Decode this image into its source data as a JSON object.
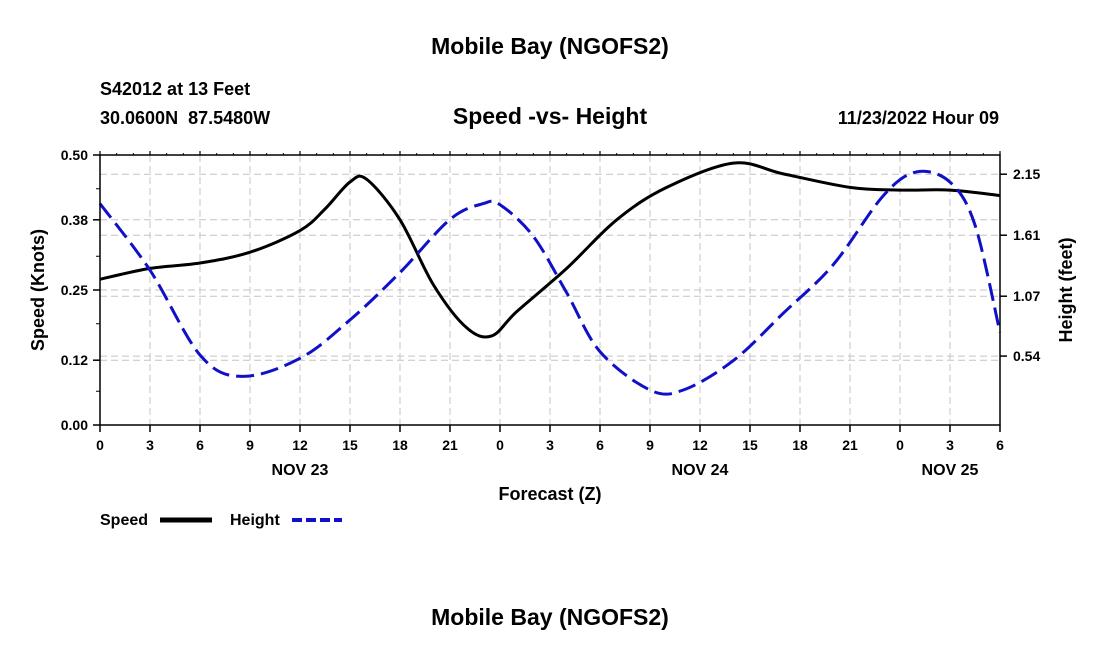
{
  "header": {
    "title": "Mobile Bay (NGOFS2)",
    "station": "S42012 at 13 Feet",
    "coords": "30.0600N  87.5480W",
    "subtitle": "Speed -vs- Height",
    "timestamp": "11/23/2022 Hour 09"
  },
  "footer_title": "Mobile Bay (NGOFS2)",
  "chart_data": {
    "type": "line",
    "xlabel": "Forecast (Z)",
    "ylabel_left": "Speed (Knots)",
    "ylabel_right": "Height (feet)",
    "x_unit": "hours",
    "x_range": [
      0,
      54
    ],
    "x_ticks": [
      0,
      3,
      6,
      9,
      12,
      15,
      18,
      21,
      24,
      27,
      30,
      33,
      36,
      39,
      42,
      45,
      48,
      51,
      54
    ],
    "x_tick_labels": [
      "0",
      "3",
      "6",
      "9",
      "12",
      "15",
      "18",
      "21",
      "0",
      "3",
      "6",
      "9",
      "12",
      "15",
      "18",
      "21",
      "0",
      "3",
      "6"
    ],
    "date_labels": [
      {
        "x": 12,
        "label": "NOV 23"
      },
      {
        "x": 36,
        "label": "NOV 24"
      },
      {
        "x": 51,
        "label": "NOV 25"
      }
    ],
    "ylim_left": [
      0,
      0.5
    ],
    "yticks_left": [
      0.0,
      0.12,
      0.25,
      0.38,
      0.5
    ],
    "ytick_labels_left": [
      "0.00",
      "0.12",
      "0.25",
      "0.38",
      "0.50"
    ],
    "ylim_right": [
      -0.07,
      2.32
    ],
    "yticks_right": [
      0.54,
      1.07,
      1.61,
      2.15
    ],
    "ytick_labels_right": [
      "0.54",
      "1.07",
      "1.61",
      "2.15"
    ],
    "grid": true,
    "legend_position": "bottom-left",
    "series": [
      {
        "name": "Speed",
        "axis": "left",
        "color": "#000000",
        "style": "solid",
        "x": [
          0,
          3,
          6,
          9,
          12,
          13.5,
          15,
          16,
          18,
          20,
          22,
          23.5,
          25,
          28,
          31,
          34,
          38,
          41,
          45,
          48,
          51,
          54
        ],
        "y": [
          0.27,
          0.29,
          0.3,
          0.32,
          0.36,
          0.4,
          0.45,
          0.455,
          0.38,
          0.26,
          0.18,
          0.165,
          0.21,
          0.29,
          0.38,
          0.44,
          0.485,
          0.465,
          0.44,
          0.435,
          0.435,
          0.425
        ]
      },
      {
        "name": "Height",
        "axis": "right",
        "color": "#1010c8",
        "style": "dashed",
        "x": [
          0,
          3,
          6,
          8.5,
          12,
          15,
          18,
          21,
          23,
          24,
          26,
          28,
          30,
          33,
          35,
          38,
          41,
          44,
          47,
          49,
          51,
          52.5,
          54
        ],
        "y": [
          1.89,
          1.3,
          0.55,
          0.36,
          0.52,
          0.86,
          1.28,
          1.75,
          1.89,
          1.88,
          1.6,
          1.1,
          0.58,
          0.24,
          0.24,
          0.5,
          0.92,
          1.35,
          1.96,
          2.17,
          2.08,
          1.7,
          0.75
        ]
      }
    ]
  },
  "colors": {
    "speed": "#000000",
    "height": "#1010c8",
    "grid": "#c4c4c4"
  }
}
